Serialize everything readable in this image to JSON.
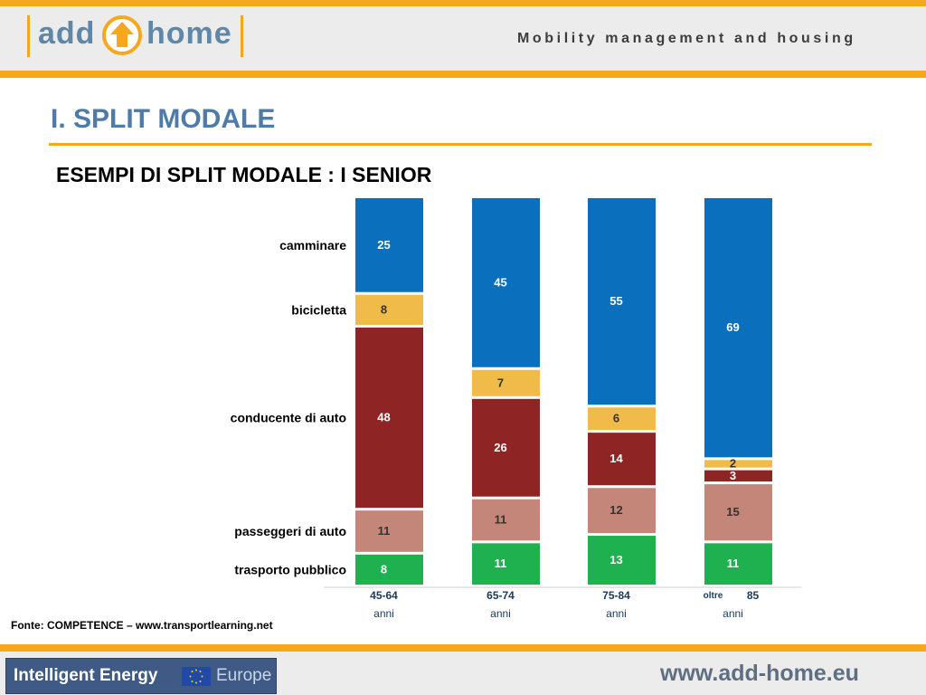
{
  "header": {
    "logo": {
      "word_left": "add",
      "word_right": "home",
      "accent": "#f7a71c",
      "text_color": "#5e87a8",
      "icon": "up-arrow-icon"
    },
    "tagline": "Mobility management and housing"
  },
  "page": {
    "title": "I. SPLIT MODALE",
    "subtitle": "ESEMPI DI SPLIT MODALE : I SENIOR"
  },
  "chart_data": {
    "type": "bar",
    "stacked": true,
    "title": "",
    "xlabel": "",
    "ylabel": "",
    "categories": [
      {
        "age": "45-64",
        "suffix": "anni",
        "prefix": ""
      },
      {
        "age": "65-74",
        "suffix": "anni",
        "prefix": ""
      },
      {
        "age": "75-84",
        "suffix": "anni",
        "prefix": ""
      },
      {
        "age": "85",
        "suffix": "anni",
        "prefix": "oltre"
      }
    ],
    "series": [
      {
        "name": "trasporto pubblico",
        "color": "#1fb14f",
        "text_color": "#ffffff",
        "values": [
          8,
          11,
          13,
          11
        ]
      },
      {
        "name": "passeggeri di auto",
        "color": "#c5867a",
        "text_color": "#333333",
        "values": [
          11,
          11,
          12,
          15
        ]
      },
      {
        "name": "conducente di auto",
        "color": "#8e2424",
        "text_color": "#ffffff",
        "values": [
          48,
          26,
          14,
          3
        ]
      },
      {
        "name": "bicicletta",
        "color": "#f0bb48",
        "text_color": "#333333",
        "values": [
          8,
          7,
          6,
          2
        ]
      },
      {
        "name": "camminare",
        "color": "#0a6fbd",
        "text_color": "#ffffff",
        "values": [
          25,
          45,
          55,
          69
        ]
      }
    ],
    "legend_placement": "left-of-bars",
    "ylim": [
      0,
      100
    ],
    "grid": false
  },
  "source": "Fonte: COMPETENCE – www.transportlearning.net",
  "footer": {
    "partner_logo": {
      "text": "Intelligent Energy",
      "text_right": "Europe",
      "icon": "eu-flag-icon"
    },
    "website": "www.add-home.eu"
  }
}
